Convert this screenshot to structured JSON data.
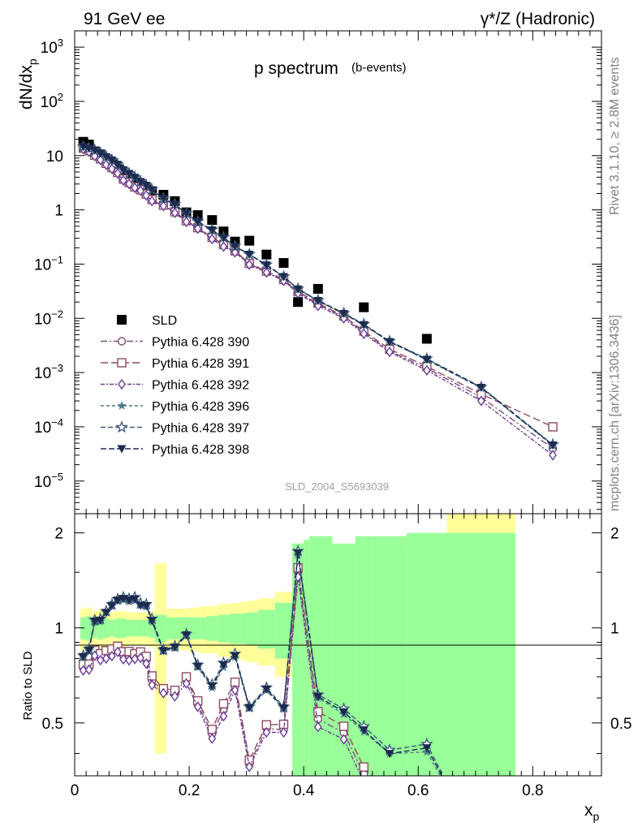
{
  "header": {
    "left": "91 GeV ee",
    "right": "γ*/Z (Hadronic)"
  },
  "side_labels": {
    "rivet": "Rivet 3.1.10, ≥ 2.8M events",
    "mcplots": "mcplots.cern.ch [arXiv:1306.3436]"
  },
  "chart_data": [
    {
      "type": "scatter",
      "title": "p spectrum",
      "subtitle": "(b-events)",
      "watermark": "SLD_2004_S5693039",
      "ylabel": "dN/dx",
      "ylabel_sub": "p",
      "yscale": "log",
      "xlim": [
        0,
        0.92
      ],
      "ylim": [
        2.5e-06,
        2000
      ],
      "ytick_labels": [
        {
          "base": "10",
          "exp": "3"
        },
        {
          "base": "10",
          "exp": "2"
        },
        {
          "base": "10",
          "exp": ""
        },
        {
          "base": "1",
          "exp": ""
        },
        {
          "base": "10",
          "exp": "−1"
        },
        {
          "base": "10",
          "exp": "−2"
        },
        {
          "base": "10",
          "exp": "−3"
        },
        {
          "base": "10",
          "exp": "−4"
        },
        {
          "base": "10",
          "exp": "−5"
        }
      ],
      "legend_position": "bottom-left",
      "series": [
        {
          "name": "SLD",
          "marker": "square-filled",
          "color": "#000000",
          "x": [
            0.015,
            0.025,
            0.035,
            0.045,
            0.055,
            0.065,
            0.075,
            0.085,
            0.095,
            0.105,
            0.115,
            0.125,
            0.135,
            0.155,
            0.175,
            0.195,
            0.215,
            0.24,
            0.26,
            0.28,
            0.305,
            0.335,
            0.365,
            0.39,
            0.425,
            0.505,
            0.615
          ],
          "y": [
            18,
            16,
            12,
            10.5,
            8.5,
            7,
            5.6,
            4.4,
            3.8,
            3.2,
            2.8,
            2.4,
            2.2,
            1.9,
            1.45,
            0.9,
            0.8,
            0.65,
            0.4,
            0.26,
            0.27,
            0.15,
            0.105,
            0.02,
            0.035,
            0.016,
            0.0042
          ]
        },
        {
          "name": "Pythia 6.428 390",
          "marker": "circle-open",
          "color": "#7e4f78",
          "x": [
            0.015,
            0.025,
            0.035,
            0.045,
            0.055,
            0.065,
            0.075,
            0.085,
            0.095,
            0.105,
            0.115,
            0.125,
            0.135,
            0.155,
            0.175,
            0.195,
            0.215,
            0.24,
            0.26,
            0.28,
            0.305,
            0.335,
            0.365,
            0.39,
            0.425,
            0.47,
            0.505,
            0.55,
            0.615,
            0.71,
            0.835
          ],
          "y": [
            13.5,
            12,
            10,
            8.5,
            7,
            5.9,
            4.8,
            3.6,
            3.1,
            2.6,
            2.3,
            1.9,
            1.5,
            1.2,
            0.9,
            0.62,
            0.46,
            0.3,
            0.22,
            0.17,
            0.1,
            0.072,
            0.05,
            0.03,
            0.018,
            0.0105,
            0.0055,
            0.0025,
            0.0012,
            0.00035,
            4e-05
          ]
        },
        {
          "name": "Pythia 6.428 391",
          "marker": "square-open",
          "color": "#8c4b5e",
          "x": [
            0.015,
            0.025,
            0.035,
            0.045,
            0.055,
            0.065,
            0.075,
            0.085,
            0.095,
            0.105,
            0.115,
            0.125,
            0.135,
            0.155,
            0.175,
            0.195,
            0.215,
            0.24,
            0.26,
            0.28,
            0.305,
            0.335,
            0.365,
            0.39,
            0.425,
            0.47,
            0.505,
            0.55,
            0.615,
            0.71,
            0.835
          ],
          "y": [
            13.8,
            12.3,
            10.2,
            8.7,
            7.2,
            6,
            4.9,
            3.7,
            3.2,
            2.65,
            2.35,
            1.95,
            1.55,
            1.22,
            0.92,
            0.63,
            0.47,
            0.31,
            0.23,
            0.175,
            0.103,
            0.074,
            0.052,
            0.031,
            0.019,
            0.011,
            0.0058,
            0.0027,
            0.0013,
            0.0004,
            0.0001
          ]
        },
        {
          "name": "Pythia 6.428 392",
          "marker": "diamond-open",
          "color": "#6a3d9a",
          "x": [
            0.015,
            0.025,
            0.035,
            0.045,
            0.055,
            0.065,
            0.075,
            0.085,
            0.095,
            0.105,
            0.115,
            0.125,
            0.135,
            0.155,
            0.175,
            0.195,
            0.215,
            0.24,
            0.26,
            0.28,
            0.305,
            0.335,
            0.365,
            0.39,
            0.425,
            0.47,
            0.505,
            0.55,
            0.615,
            0.71,
            0.835
          ],
          "y": [
            13.2,
            11.8,
            9.8,
            8.3,
            6.8,
            5.7,
            4.7,
            3.5,
            3,
            2.55,
            2.25,
            1.85,
            1.45,
            1.18,
            0.88,
            0.6,
            0.45,
            0.29,
            0.21,
            0.165,
            0.098,
            0.07,
            0.049,
            0.029,
            0.017,
            0.01,
            0.0052,
            0.0024,
            0.0011,
            0.0003,
            3e-05
          ]
        },
        {
          "name": "Pythia 6.428 396",
          "marker": "star-filled",
          "color": "#4e7c8c",
          "x": [
            0.015,
            0.025,
            0.035,
            0.045,
            0.055,
            0.065,
            0.075,
            0.085,
            0.095,
            0.105,
            0.115,
            0.125,
            0.135,
            0.155,
            0.175,
            0.195,
            0.215,
            0.24,
            0.26,
            0.28,
            0.305,
            0.335,
            0.365,
            0.39,
            0.425,
            0.47,
            0.505,
            0.55,
            0.615,
            0.71,
            0.835
          ],
          "y": [
            14.5,
            13.5,
            12.5,
            11,
            9.5,
            8.2,
            6.8,
            5.4,
            4.6,
            3.9,
            3.3,
            2.8,
            2.3,
            1.6,
            1.25,
            0.85,
            0.6,
            0.42,
            0.3,
            0.21,
            0.15,
            0.095,
            0.058,
            0.034,
            0.021,
            0.012,
            0.0075,
            0.0037,
            0.0017,
            0.00052,
            4.5e-05
          ]
        },
        {
          "name": "Pythia 6.428 397",
          "marker": "star-open",
          "color": "#3a5a78",
          "x": [
            0.015,
            0.025,
            0.035,
            0.045,
            0.055,
            0.065,
            0.075,
            0.085,
            0.095,
            0.105,
            0.115,
            0.125,
            0.135,
            0.155,
            0.175,
            0.195,
            0.215,
            0.24,
            0.26,
            0.28,
            0.305,
            0.335,
            0.365,
            0.39,
            0.425,
            0.47,
            0.505,
            0.55,
            0.615,
            0.71,
            0.835
          ],
          "y": [
            14.7,
            13.7,
            12.7,
            11.2,
            9.6,
            8.3,
            6.9,
            5.5,
            4.7,
            4,
            3.35,
            2.85,
            2.35,
            1.62,
            1.27,
            0.86,
            0.61,
            0.43,
            0.31,
            0.215,
            0.152,
            0.097,
            0.059,
            0.035,
            0.0215,
            0.0125,
            0.0078,
            0.0038,
            0.0018,
            0.00054,
            4.7e-05
          ]
        },
        {
          "name": "Pythia 6.428 398",
          "marker": "triangle-down-filled",
          "color": "#1c2b4f",
          "x": [
            0.015,
            0.025,
            0.035,
            0.045,
            0.055,
            0.065,
            0.075,
            0.085,
            0.095,
            0.105,
            0.115,
            0.125,
            0.135,
            0.155,
            0.175,
            0.195,
            0.215,
            0.24,
            0.26,
            0.28,
            0.305,
            0.335,
            0.365,
            0.39,
            0.425,
            0.47,
            0.505,
            0.55,
            0.615,
            0.71,
            0.835
          ],
          "y": [
            14.6,
            13.6,
            12.6,
            11.1,
            9.5,
            8.25,
            6.85,
            5.45,
            4.65,
            3.95,
            3.3,
            2.82,
            2.32,
            1.61,
            1.26,
            0.855,
            0.605,
            0.425,
            0.305,
            0.212,
            0.151,
            0.096,
            0.0585,
            0.0345,
            0.0212,
            0.0122,
            0.0076,
            0.0037,
            0.00175,
            0.00053,
            4.6e-05
          ]
        }
      ]
    },
    {
      "type": "scatter",
      "ylabel": "Ratio to SLD",
      "xlabel": "x",
      "xlabel_sub": "p",
      "xlim": [
        0,
        0.92
      ],
      "ylim": [
        0.34,
        2.3
      ],
      "xtick_labels": [
        "0",
        "0.2",
        "0.4",
        "0.6",
        "0.8"
      ],
      "ytick_labels": [
        "0.5",
        "1",
        "2"
      ],
      "reference_line": 1,
      "bands": {
        "x_edges": [
          0.01,
          0.02,
          0.03,
          0.04,
          0.05,
          0.06,
          0.07,
          0.08,
          0.09,
          0.1,
          0.11,
          0.12,
          0.13,
          0.14,
          0.16,
          0.18,
          0.2,
          0.22,
          0.23,
          0.25,
          0.27,
          0.29,
          0.3,
          0.32,
          0.35,
          0.38,
          0.4,
          0.41,
          0.45,
          0.49,
          0.52,
          0.58,
          0.65,
          0.77
        ],
        "inner_half_width": [
          0.08,
          0.09,
          0.07,
          0.08,
          0.07,
          0.06,
          0.07,
          0.07,
          0.06,
          0.06,
          0.06,
          0.06,
          0.07,
          0.1,
          0.08,
          0.08,
          0.08,
          0.08,
          0.09,
          0.1,
          0.11,
          0.11,
          0.12,
          0.14,
          0.2,
          0.85,
          0.9,
          0.95,
          0.85,
          0.95,
          0.95,
          1.0,
          1.0
        ],
        "outer_half_width": [
          0.15,
          0.16,
          0.13,
          0.14,
          0.13,
          0.12,
          0.13,
          0.13,
          0.12,
          0.12,
          0.12,
          0.12,
          0.13,
          0.6,
          0.15,
          0.15,
          0.16,
          0.17,
          0.17,
          0.19,
          0.2,
          0.21,
          0.22,
          0.24,
          0.3,
          0.85,
          0.7,
          0.95,
          0.6,
          0.7,
          0.65,
          0.7,
          1.3
        ]
      }
    }
  ]
}
